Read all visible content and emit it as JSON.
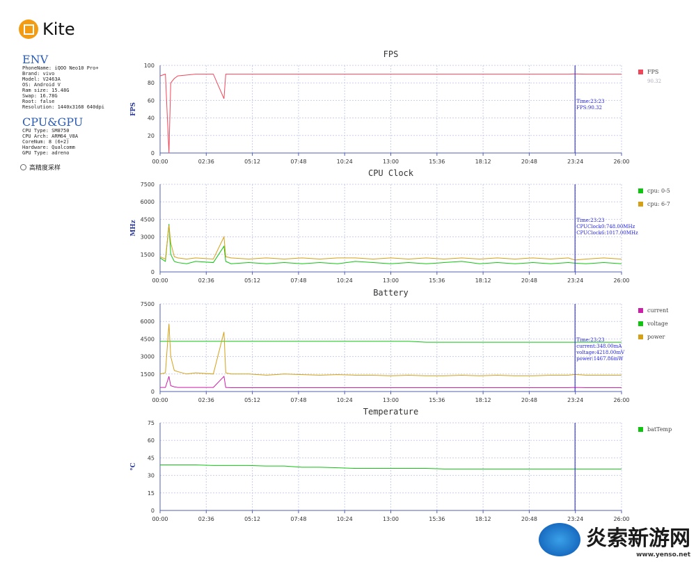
{
  "app": {
    "name": "Kite"
  },
  "env": {
    "title": "ENV",
    "items": [
      "PhoneName: iQOO Neo10 Pro+",
      "Brand: vivo",
      "Model: V2463A",
      "OS: Android V",
      "Ram size: 15.48G",
      "Swap: 16.78G",
      "Root: false",
      "Resolution: 1440x3168 640dpi"
    ]
  },
  "cpugpu": {
    "title": "CPU&GPU",
    "items": [
      "CPU Type: SM8750",
      "CPU Arch: ARM64_V8A",
      "CoreNum: 8 (6+2)",
      "Hardware: Qualcomm",
      "GPU Type: adreno"
    ]
  },
  "option": {
    "label": "高精度采样",
    "checked": false
  },
  "watermark": {
    "text": "炎索新游网",
    "url": "www.yenso.net"
  },
  "cursor": {
    "time_min": 23.38
  },
  "chart_data": [
    {
      "type": "line",
      "title": "FPS",
      "ylabel": "FPS",
      "ylim": [
        0,
        100
      ],
      "yticks": [
        0,
        20,
        40,
        60,
        80,
        100
      ],
      "xlim": [
        0,
        26
      ],
      "xticks": [
        "00:00",
        "02:36",
        "05:12",
        "07:48",
        "10:24",
        "13:00",
        "15:36",
        "18:12",
        "20:48",
        "23:24",
        "26:00"
      ],
      "x": [
        0,
        0.3,
        0.5,
        0.6,
        0.8,
        1,
        1.5,
        2,
        3,
        3.6,
        3.7,
        4,
        5,
        6,
        7,
        8,
        9,
        10,
        11,
        12,
        13,
        14,
        15,
        16,
        17,
        18,
        19,
        20,
        21,
        22,
        23,
        23.38,
        24,
        25,
        26
      ],
      "series": [
        {
          "name": "FPS",
          "color": "#f0465a",
          "legend_value": "90.32",
          "values": [
            88,
            90,
            0,
            80,
            85,
            88,
            89,
            90,
            90,
            62,
            90,
            90,
            90,
            90,
            90,
            90,
            90,
            90,
            90,
            90,
            90,
            90,
            90,
            90,
            90,
            90,
            90,
            90,
            90,
            90,
            90,
            90.32,
            90,
            90,
            90
          ]
        }
      ],
      "tooltip": [
        "Time:23:23",
        "FPS:90.32"
      ]
    },
    {
      "type": "line",
      "title": "CPU Clock",
      "ylabel": "MHz",
      "ylim": [
        0,
        7500
      ],
      "yticks": [
        0,
        1500,
        3000,
        4500,
        6000,
        7500
      ],
      "xlim": [
        0,
        26
      ],
      "xticks": [
        "00:00",
        "02:36",
        "05:12",
        "07:48",
        "10:24",
        "13:00",
        "15:36",
        "18:12",
        "20:48",
        "23:24",
        "26:00"
      ],
      "x": [
        0,
        0.3,
        0.5,
        0.6,
        0.8,
        1,
        1.5,
        2,
        3,
        3.6,
        3.7,
        4,
        5,
        6,
        7,
        8,
        9,
        10,
        11,
        12,
        13,
        14,
        15,
        16,
        17,
        18,
        19,
        20,
        21,
        22,
        23,
        23.38,
        24,
        25,
        26
      ],
      "series": [
        {
          "name": "cpu: 0-5",
          "color": "#11c411",
          "values": [
            1200,
            900,
            4100,
            1500,
            900,
            800,
            700,
            900,
            800,
            2200,
            900,
            700,
            800,
            700,
            800,
            700,
            800,
            700,
            900,
            800,
            700,
            800,
            700,
            800,
            900,
            700,
            800,
            700,
            800,
            700,
            800,
            748,
            700,
            800,
            700
          ]
        },
        {
          "name": "cpu: 6-7",
          "color": "#d4a017",
          "values": [
            1300,
            1100,
            4000,
            2500,
            1300,
            1200,
            1100,
            1200,
            1100,
            3000,
            1300,
            1200,
            1100,
            1200,
            1100,
            1200,
            1100,
            1200,
            1200,
            1100,
            1200,
            1100,
            1200,
            1100,
            1200,
            1100,
            1200,
            1100,
            1200,
            1100,
            1200,
            1017,
            1100,
            1200,
            1100
          ]
        }
      ],
      "tooltip": [
        "Time:23:23",
        "CPUClock0:748.00MHz",
        "CPUClock6:1017.00MHz"
      ]
    },
    {
      "type": "line",
      "title": "Battery",
      "ylabel": "",
      "ylim": [
        0,
        7500
      ],
      "yticks": [
        0,
        1500,
        3000,
        4500,
        6000,
        7500
      ],
      "xlim": [
        0,
        26
      ],
      "xticks": [
        "00:00",
        "02:36",
        "05:12",
        "07:48",
        "10:24",
        "13:00",
        "15:36",
        "18:12",
        "20:48",
        "23:24",
        "26:00"
      ],
      "x": [
        0,
        0.3,
        0.5,
        0.6,
        0.8,
        1,
        1.5,
        2,
        3,
        3.6,
        3.7,
        4,
        5,
        6,
        7,
        8,
        9,
        10,
        11,
        12,
        13,
        14,
        15,
        16,
        17,
        18,
        19,
        20,
        21,
        22,
        23,
        23.38,
        24,
        25,
        26
      ],
      "series": [
        {
          "name": "current",
          "color": "#cc1fa8",
          "values": [
            350,
            350,
            1300,
            500,
            400,
            350,
            350,
            350,
            350,
            1300,
            350,
            330,
            330,
            330,
            330,
            330,
            330,
            330,
            330,
            330,
            330,
            330,
            330,
            330,
            330,
            330,
            330,
            330,
            330,
            330,
            330,
            348,
            330,
            330,
            330
          ]
        },
        {
          "name": "voltage",
          "color": "#11c411",
          "values": [
            4300,
            4300,
            4300,
            4300,
            4300,
            4300,
            4300,
            4300,
            4300,
            4300,
            4300,
            4300,
            4300,
            4300,
            4300,
            4300,
            4300,
            4300,
            4300,
            4300,
            4300,
            4300,
            4218,
            4218,
            4218,
            4218,
            4218,
            4218,
            4218,
            4218,
            4218,
            4218,
            4218,
            4218,
            4218
          ]
        },
        {
          "name": "power",
          "color": "#d4a017",
          "values": [
            1500,
            1600,
            5800,
            3000,
            1800,
            1700,
            1500,
            1600,
            1500,
            5100,
            1600,
            1500,
            1500,
            1400,
            1500,
            1450,
            1400,
            1450,
            1400,
            1400,
            1350,
            1400,
            1350,
            1350,
            1400,
            1350,
            1400,
            1350,
            1350,
            1400,
            1400,
            1467.86,
            1400,
            1400,
            1400
          ]
        }
      ],
      "tooltip": [
        "Time:23:23",
        "current:348.00mA",
        "voltage:4218.00mV",
        "power:1467.86mW"
      ]
    },
    {
      "type": "line",
      "title": "Temperature",
      "ylabel": "°C",
      "ylim": [
        0,
        75
      ],
      "yticks": [
        0,
        15,
        30,
        45,
        60,
        75
      ],
      "xlim": [
        0,
        26
      ],
      "xticks": [
        "00:00",
        "02:36",
        "05:12",
        "07:48",
        "10:24",
        "13:00",
        "15:36",
        "18:12",
        "20:48",
        "23:24",
        "26:00"
      ],
      "x": [
        0,
        0.3,
        0.5,
        0.6,
        0.8,
        1,
        1.5,
        2,
        3,
        3.6,
        3.7,
        4,
        5,
        6,
        7,
        8,
        9,
        10,
        11,
        12,
        13,
        14,
        15,
        16,
        17,
        18,
        19,
        20,
        21,
        22,
        23,
        23.38,
        24,
        25,
        26
      ],
      "series": [
        {
          "name": "batTemp",
          "color": "#11c411",
          "values": [
            39,
            39,
            39,
            39,
            39,
            39,
            39,
            39,
            38.5,
            38.5,
            38.5,
            38.5,
            38.5,
            38,
            38,
            37,
            37,
            36.5,
            36,
            36,
            36,
            36,
            36,
            35.5,
            35.5,
            35.5,
            35.5,
            35.5,
            35.5,
            35.5,
            35.5,
            35.5,
            35.5,
            35.5,
            35.5
          ]
        }
      ],
      "tooltip": []
    }
  ]
}
